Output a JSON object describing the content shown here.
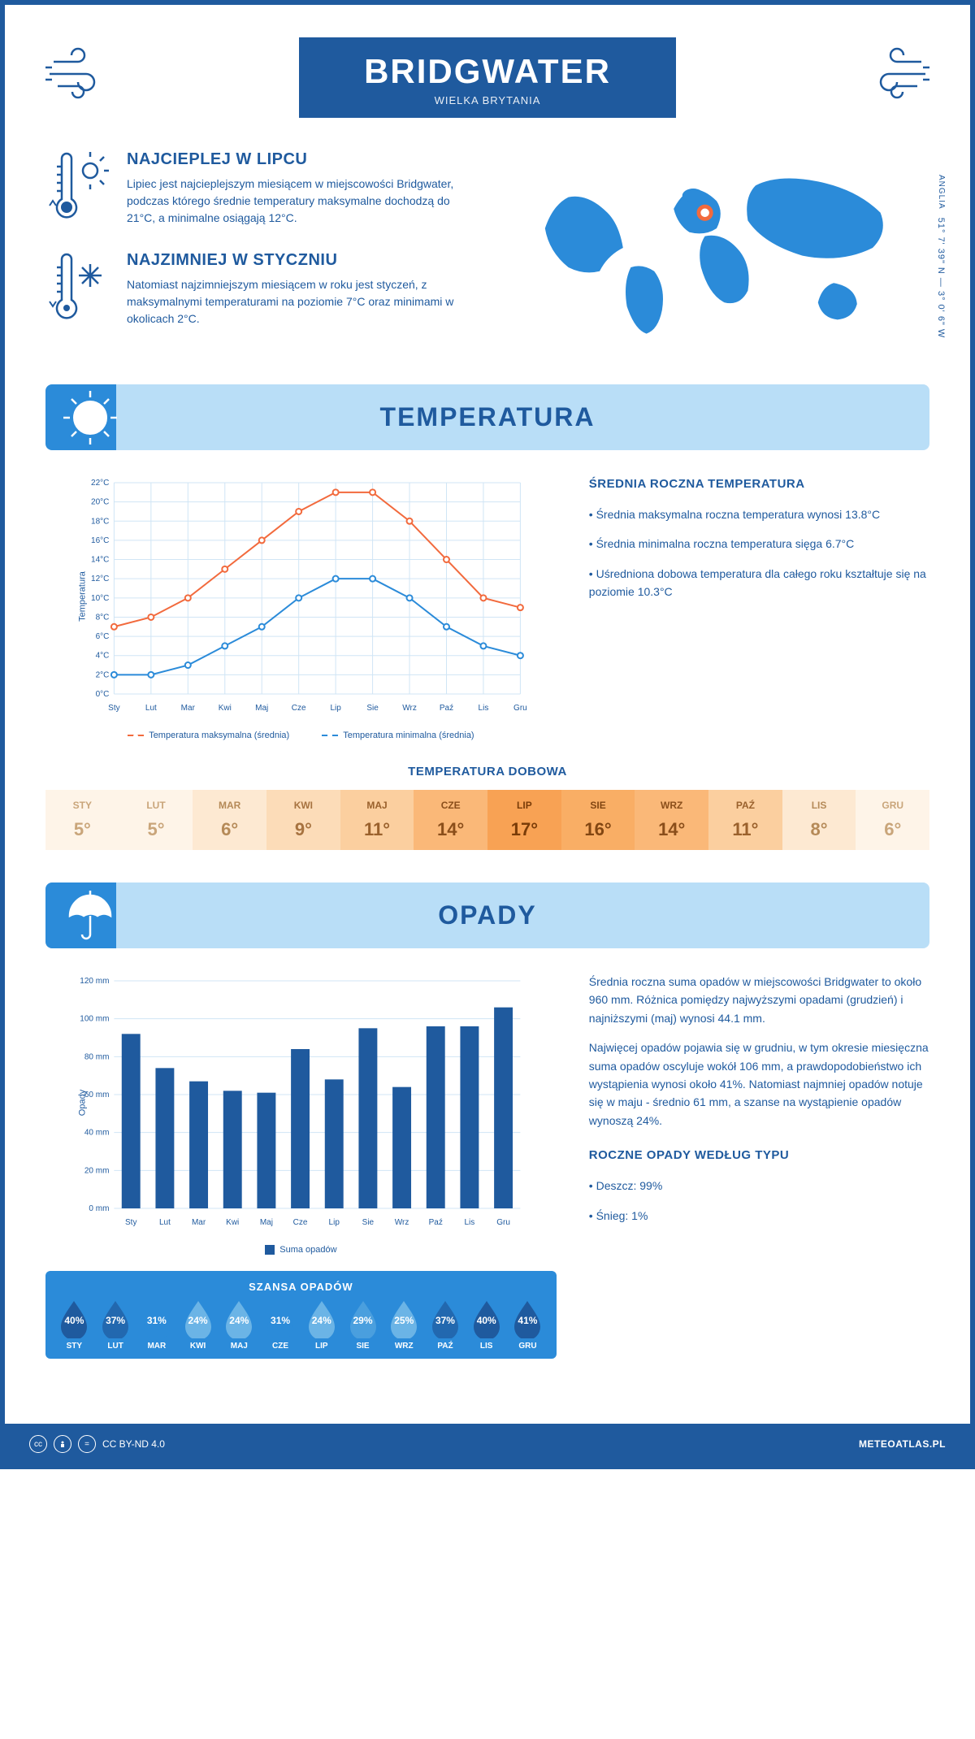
{
  "header": {
    "city": "BRIDGWATER",
    "country": "WIELKA BRYTANIA",
    "coords": "51° 7' 39\" N — 3° 0' 6\" W",
    "region": "ANGLIA"
  },
  "map": {
    "marker": {
      "cx_pct": 47,
      "cy_pct": 32
    }
  },
  "facts": {
    "warm": {
      "title": "NAJCIEPLEJ W LIPCU",
      "text": "Lipiec jest najcieplejszym miesiącem w miejscowości Bridgwater, podczas którego średnie temperatury maksymalne dochodzą do 21°C, a minimalne osiągają 12°C."
    },
    "cold": {
      "title": "NAJZIMNIEJ W STYCZNIU",
      "text": "Natomiast najzimniejszym miesiącem w roku jest styczeń, z maksymalnymi temperaturami na poziomie 7°C oraz minimami w okolicach 2°C."
    }
  },
  "sections": {
    "temperature": "TEMPERATURA",
    "precipitation": "OPADY"
  },
  "temp_chart": {
    "type": "line",
    "ylabel": "Temperatura",
    "y_unit": "°C",
    "ylim": [
      0,
      22
    ],
    "ytick_step": 2,
    "months": [
      "Sty",
      "Lut",
      "Mar",
      "Kwi",
      "Maj",
      "Cze",
      "Lip",
      "Sie",
      "Wrz",
      "Paź",
      "Lis",
      "Gru"
    ],
    "series": {
      "max": {
        "label": "Temperatura maksymalna (średnia)",
        "color": "#f26a3d",
        "values": [
          7,
          8,
          10,
          13,
          16,
          19,
          21,
          21,
          18,
          14,
          10,
          9
        ]
      },
      "min": {
        "label": "Temperatura minimalna (średnia)",
        "color": "#2b8bd9",
        "values": [
          2,
          2,
          3,
          5,
          7,
          10,
          12,
          12,
          10,
          7,
          5,
          4
        ]
      }
    },
    "grid_color": "#d0e5f5",
    "background_color": "#ffffff",
    "label_fontsize": 10
  },
  "temp_summary": {
    "title": "ŚREDNIA ROCZNA TEMPERATURA",
    "bullet1": "• Średnia maksymalna roczna temperatura wynosi 13.8°C",
    "bullet2": "• Średnia minimalna roczna temperatura sięga 6.7°C",
    "bullet3": "• Uśredniona dobowa temperatura dla całego roku kształtuje się na poziomie 10.3°C"
  },
  "daily_temp": {
    "title": "TEMPERATURA DOBOWA",
    "months": [
      "STY",
      "LUT",
      "MAR",
      "KWI",
      "MAJ",
      "CZE",
      "LIP",
      "SIE",
      "WRZ",
      "PAŹ",
      "LIS",
      "GRU"
    ],
    "values": [
      "5°",
      "5°",
      "6°",
      "9°",
      "11°",
      "14°",
      "17°",
      "16°",
      "14°",
      "11°",
      "8°",
      "6°"
    ],
    "bg_colors": [
      "#fef4e8",
      "#fef4e8",
      "#fde9d2",
      "#fcdcb8",
      "#fbcf9f",
      "#fab878",
      "#f8a254",
      "#f9ae65",
      "#fab878",
      "#fbcf9f",
      "#fde9d2",
      "#fef4e8"
    ],
    "text_colors": [
      "#c9a57a",
      "#c9a57a",
      "#b58a58",
      "#a77340",
      "#9a612c",
      "#8a4e1a",
      "#7a3c08",
      "#824612",
      "#8a4e1a",
      "#9a612c",
      "#b58a58",
      "#c9a57a"
    ]
  },
  "precip_chart": {
    "type": "bar",
    "ylabel": "Opady",
    "y_unit": " mm",
    "ylim": [
      0,
      120
    ],
    "ytick_step": 20,
    "months": [
      "Sty",
      "Lut",
      "Mar",
      "Kwi",
      "Maj",
      "Cze",
      "Lip",
      "Sie",
      "Wrz",
      "Paź",
      "Lis",
      "Gru"
    ],
    "values": [
      92,
      74,
      67,
      62,
      61,
      84,
      68,
      95,
      64,
      96,
      96,
      106
    ],
    "bar_color": "#1f5a9e",
    "grid_color": "#d0e5f5",
    "legend_label": "Suma opadów",
    "bar_width": 0.55
  },
  "precip_text": {
    "p1": "Średnia roczna suma opadów w miejscowości Bridgwater to około 960 mm. Różnica pomiędzy najwyższymi opadami (grudzień) i najniższymi (maj) wynosi 44.1 mm.",
    "p2": "Najwięcej opadów pojawia się w grudniu, w tym okresie miesięczna suma opadów oscyluje wokół 106 mm, a prawdopodobieństwo ich wystąpienia wynosi około 41%. Natomiast najmniej opadów notuje się w maju - średnio 61 mm, a szanse na wystąpienie opadów wynoszą 24%.",
    "type_title": "ROCZNE OPADY WEDŁUG TYPU",
    "type_1": "• Deszcz: 99%",
    "type_2": "• Śnieg: 1%"
  },
  "chance": {
    "title": "SZANSA OPADÓW",
    "months": [
      "STY",
      "LUT",
      "MAR",
      "KWI",
      "MAJ",
      "CZE",
      "LIP",
      "SIE",
      "WRZ",
      "PAŹ",
      "LIS",
      "GRU"
    ],
    "pct": [
      "40%",
      "37%",
      "31%",
      "24%",
      "24%",
      "31%",
      "24%",
      "29%",
      "25%",
      "37%",
      "40%",
      "41%"
    ],
    "drop_colors": [
      "#1f5a9e",
      "#2268af",
      "#2b8bd9",
      "#6bb4e6",
      "#6bb4e6",
      "#2b8bd9",
      "#6bb4e6",
      "#4a9fde",
      "#6bb4e6",
      "#2268af",
      "#1f5a9e",
      "#1f5a9e"
    ]
  },
  "footer": {
    "license": "CC BY-ND 4.0",
    "site": "METEOATLAS.PL"
  }
}
